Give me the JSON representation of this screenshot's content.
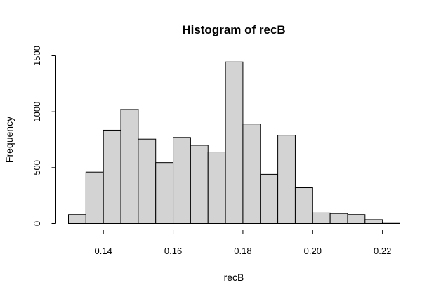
{
  "chart_data": {
    "type": "bar",
    "title": "Histogram of recB",
    "xlabel": "recB",
    "ylabel": "Frequency",
    "bin_edges": [
      0.13,
      0.135,
      0.14,
      0.145,
      0.15,
      0.155,
      0.16,
      0.165,
      0.17,
      0.175,
      0.18,
      0.185,
      0.19,
      0.195,
      0.2,
      0.205,
      0.21,
      0.215,
      0.22,
      0.225
    ],
    "values": [
      80,
      460,
      835,
      1020,
      755,
      545,
      770,
      700,
      640,
      1445,
      890,
      440,
      790,
      320,
      95,
      90,
      80,
      35,
      12
    ],
    "xlim": [
      0.13,
      0.225
    ],
    "ylim": [
      0,
      1600
    ],
    "x_ticks": [
      0.14,
      0.16,
      0.18,
      0.2,
      0.22
    ],
    "x_tick_labels": [
      "0.14",
      "0.16",
      "0.18",
      "0.20",
      "0.22"
    ],
    "y_ticks": [
      0,
      500,
      1000,
      1500
    ],
    "y_tick_labels": [
      "0",
      "500",
      "1000",
      "1500"
    ],
    "bar_fill": "#d3d3d3",
    "bar_stroke": "#000000"
  }
}
